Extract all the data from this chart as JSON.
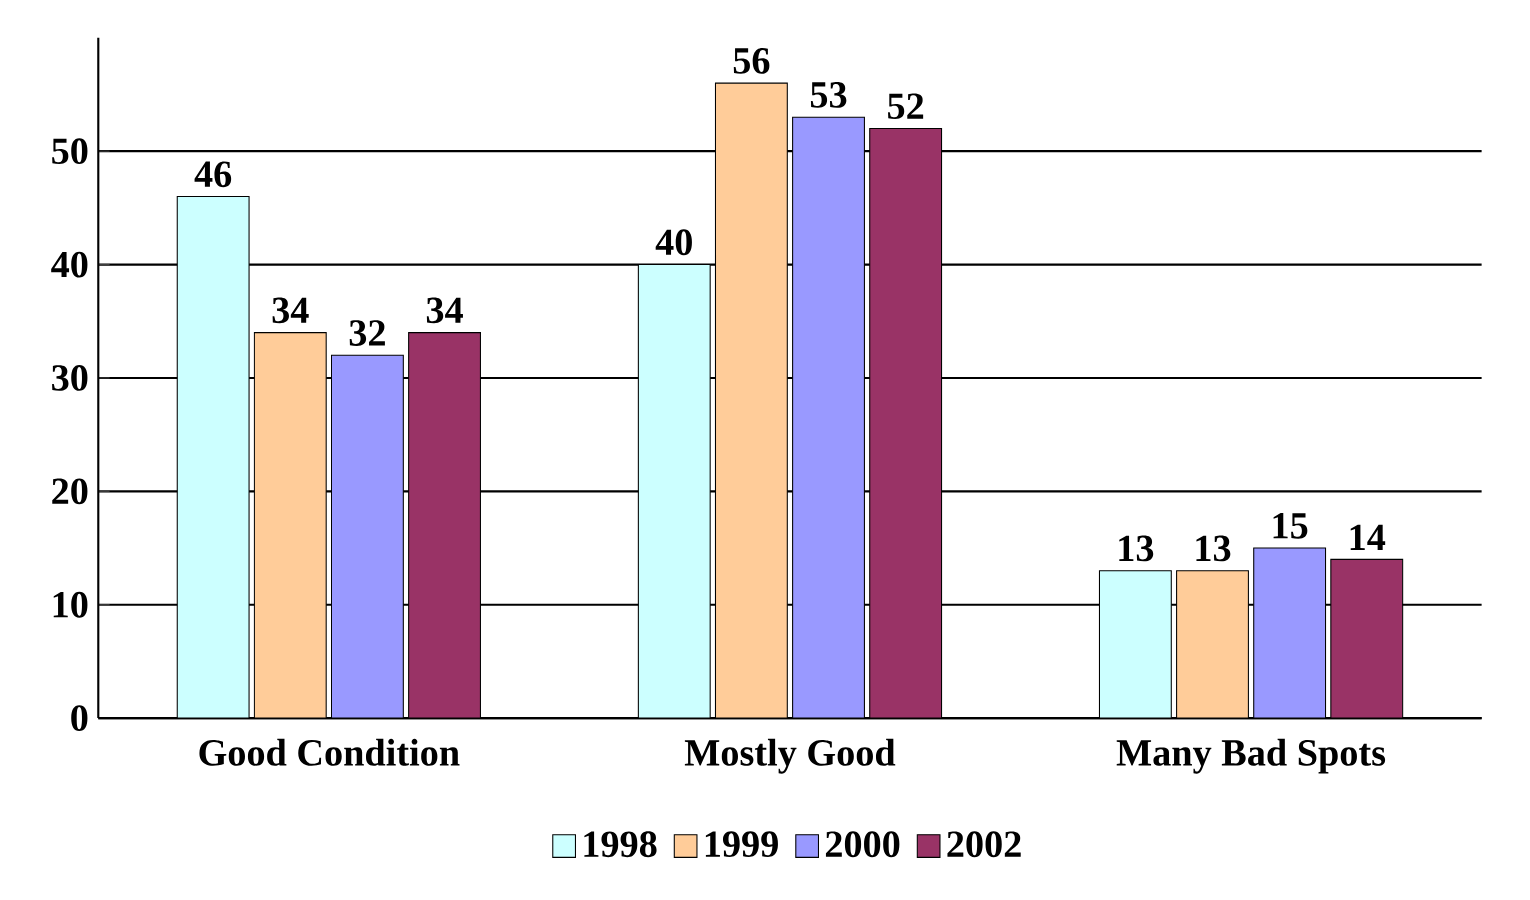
{
  "chart_data": {
    "type": "bar",
    "categories": [
      "Good Condition",
      "Mostly Good",
      "Many Bad Spots"
    ],
    "series": [
      {
        "name": "1998",
        "color": "#ccffff",
        "values": [
          46,
          40,
          13
        ]
      },
      {
        "name": "1999",
        "color": "#ffcc99",
        "values": [
          34,
          56,
          13
        ]
      },
      {
        "name": "2000",
        "color": "#9999ff",
        "values": [
          32,
          53,
          15
        ]
      },
      {
        "name": "2002",
        "color": "#993366",
        "values": [
          34,
          52,
          14
        ]
      }
    ],
    "ylim": [
      0,
      60
    ],
    "yticks": [
      0,
      10,
      20,
      30,
      40,
      50
    ],
    "grid": "y",
    "legend": "bottom",
    "data_labels": true
  }
}
